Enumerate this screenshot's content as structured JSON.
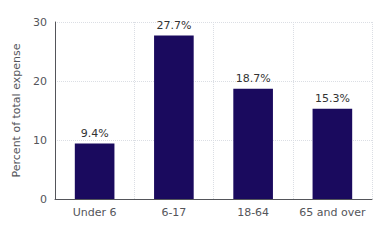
{
  "chart_data": {
    "type": "bar",
    "categories": [
      "Under 6",
      "6-17",
      "18-64",
      "65 and over"
    ],
    "values": [
      9.4,
      27.7,
      18.7,
      15.3
    ],
    "value_labels": [
      "9.4%",
      "27.7%",
      "18.7%",
      "15.3%"
    ],
    "color": "#1a0a5e",
    "ylabel": "Percent of total expense",
    "ylim": [
      0,
      30
    ],
    "yticks": [
      0,
      10,
      20,
      30
    ],
    "grid": true,
    "data_labels": true
  }
}
